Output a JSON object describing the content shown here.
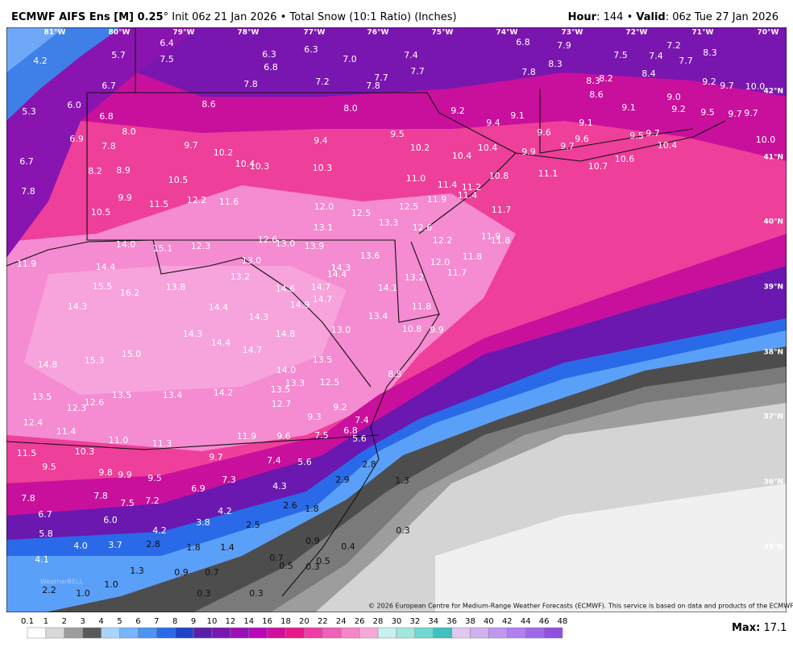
{
  "header": {
    "model": "ECMWF AIFS Ens [M] 0.25",
    "degree": "°",
    "init": "Init 06z 21 Jan 2026",
    "separator": "•",
    "product": "Total Snow (10:1 Ratio) (Inches)",
    "hour_label": "Hour",
    "hour": ": 144",
    "valid_label": "Valid",
    "valid": ": 06z Tue 27 Jan 2026"
  },
  "longitudes": [
    "81°W",
    "80°W",
    "79°W",
    "78°W",
    "77°W",
    "76°W",
    "75°W",
    "74°W",
    "73°W",
    "72°W",
    "71°W",
    "70°W"
  ],
  "latitudes": [
    "42°N",
    "41°N",
    "40°N",
    "39°N",
    "38°N",
    "37°N",
    "36°N",
    "35°N"
  ],
  "labels": [
    "6.4",
    "4.2",
    "5.7",
    "7.5",
    "6.3",
    "6.3",
    "6.8",
    "7.0",
    "7.4",
    "6.8",
    "7.9",
    "7.2",
    "8.3",
    "7.5",
    "7.4",
    "7.7",
    "8.3",
    "7.7",
    "7.8",
    "8.4",
    "8.3",
    "8.2",
    "7.7",
    "7.8",
    "7.2",
    "7.8",
    "6.7",
    "9.2",
    "9.7",
    "10.0",
    "8.6",
    "9.0",
    "6.0",
    "5.3",
    "8.6",
    "8.0",
    "9.2",
    "9.1",
    "9.2",
    "9.5",
    "9.7",
    "9.7",
    "6.8",
    "9.4",
    "9.1",
    "9.1",
    "6.9",
    "8.0",
    "9.5",
    "9.6",
    "9.6",
    "9.5",
    "9.7",
    "10.0",
    "10.4",
    "9.7",
    "9.4",
    "10.2",
    "10.4",
    "9.7",
    "7.8",
    "10.2",
    "9.9",
    "6.7",
    "10.4",
    "10.3",
    "10.4",
    "10.6",
    "10.7",
    "8.2",
    "8.9",
    "10.3",
    "10.8",
    "11.1",
    "10.5",
    "11.0",
    "11.4",
    "11.2",
    "7.8",
    "11.4",
    "9.9",
    "12.2",
    "11.6",
    "11.5",
    "11.9",
    "12.0",
    "12.5",
    "11.7",
    "10.5",
    "12.5",
    "13.3",
    "13.1",
    "12.6",
    "11.9",
    "11.8",
    "12.2",
    "14.0",
    "15.1",
    "12.3",
    "12.6",
    "13.0",
    "13.9",
    "11.8",
    "13.0",
    "12.0",
    "13.6",
    "11.9",
    "14.4",
    "14.3",
    "14.4",
    "11.7",
    "13.2",
    "13.2",
    "15.5",
    "13.8",
    "14.6",
    "14.7",
    "14.1",
    "16.2",
    "14.7",
    "14.3",
    "14.4",
    "14.9",
    "11.8",
    "14.3",
    "13.4",
    "10.8",
    "9.9",
    "14.8",
    "13.0",
    "14.3",
    "14.4",
    "14.7",
    "15.0",
    "15.3",
    "13.5",
    "14.8",
    "14.0",
    "8.5",
    "13.3",
    "12.5",
    "13.5",
    "14.2",
    "13.5",
    "13.4",
    "13.5",
    "12.6",
    "12.3",
    "12.7",
    "9.2",
    "12.4",
    "9.3",
    "7.4",
    "11.4",
    "6.8",
    "5.6",
    "11.9",
    "9.6",
    "7.5",
    "11.0",
    "11.3",
    "10.3",
    "11.5",
    "9.7",
    "7.4",
    "5.6",
    "9.5",
    "9.8",
    "9.9",
    "9.5",
    "7.3",
    "2.8",
    "2.9",
    "1.3",
    "7.8",
    "7.8",
    "7.5",
    "7.2",
    "6.9",
    "4.3",
    "2.6",
    "1.8",
    "6.7",
    "6.0",
    "4.2",
    "3.8",
    "2.5",
    "0.3",
    "4.2",
    "5.8",
    "4.0",
    "3.7",
    "2.8",
    "1.8",
    "1.4",
    "0.9",
    "0.4",
    "0.7",
    "0.5",
    "0.5",
    "0.3",
    "4.1",
    "1.3",
    "0.9",
    "0.7",
    "1.0",
    "1.0",
    "2.2",
    "0.3",
    "0.3"
  ],
  "legend": {
    "ticks": [
      "0.1",
      "1",
      "2",
      "3",
      "4",
      "5",
      "6",
      "7",
      "8",
      "9",
      "10",
      "12",
      "14",
      "16",
      "18",
      "20",
      "22",
      "24",
      "26",
      "28",
      "30",
      "32",
      "34",
      "36",
      "38",
      "40",
      "42",
      "44",
      "46",
      "48"
    ],
    "colors": [
      "#ffffff",
      "#d9d9d9",
      "#9d9d9d",
      "#5a5a5a",
      "#a8d4ff",
      "#78b4ff",
      "#4a94f4",
      "#2a6ae8",
      "#1f44c8",
      "#5a1ea8",
      "#7818b0",
      "#9a10b8",
      "#b808b8",
      "#d0109c",
      "#e81888",
      "#f03ca8",
      "#f060b8",
      "#f586c8",
      "#f8a8d8",
      "#c8f0f0",
      "#a0e8e0",
      "#70d8d0",
      "#40c0c0",
      "#e0c8f0",
      "#d0b0f0",
      "#c098f0",
      "#b080f0",
      "#a068e8",
      "#9050e0"
    ],
    "max_label": "Max:",
    "max": "17.1"
  },
  "copyright": "© 2026 European Centre for Medium-Range Weather Forecasts (ECMWF). This service is based on data and products of the ECMWF.",
  "logo": "WeatherBELL"
}
